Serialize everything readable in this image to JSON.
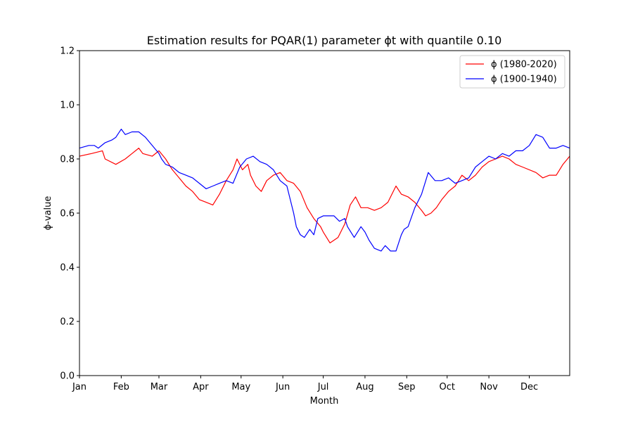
{
  "chart_data": {
    "type": "line",
    "title": "Estimation results for PQAR(1) parameter ϕt with quantile 0.10",
    "xlabel": "Month",
    "ylabel": "ϕ-value",
    "xlim": [
      1,
      365
    ],
    "ylim": [
      0.0,
      1.2
    ],
    "yticks": [
      0.0,
      0.2,
      0.4,
      0.6,
      0.8,
      1.0,
      1.2
    ],
    "ytick_labels": [
      "0.0",
      "0.2",
      "0.4",
      "0.6",
      "0.8",
      "1.0",
      "1.2"
    ],
    "xticks": [
      {
        "day": 1,
        "label": "Jan"
      },
      {
        "day": 32,
        "label": "Feb"
      },
      {
        "day": 60,
        "label": "Mar"
      },
      {
        "day": 91,
        "label": "Apr"
      },
      {
        "day": 121,
        "label": "May"
      },
      {
        "day": 152,
        "label": "Jun"
      },
      {
        "day": 182,
        "label": "Jul"
      },
      {
        "day": 213,
        "label": "Aug"
      },
      {
        "day": 244,
        "label": "Sep"
      },
      {
        "day": 274,
        "label": "Oct"
      },
      {
        "day": 305,
        "label": "Nov"
      },
      {
        "day": 335,
        "label": "Dec"
      }
    ],
    "grid": false,
    "legend_position": "top-right",
    "series": [
      {
        "name": "ϕ (1980-2020)",
        "color": "#ff0000",
        "x": [
          1,
          10,
          18,
          20,
          28,
          35,
          40,
          45,
          48,
          55,
          60,
          65,
          70,
          75,
          80,
          85,
          90,
          95,
          100,
          105,
          110,
          115,
          118,
          122,
          126,
          128,
          132,
          136,
          140,
          145,
          150,
          155,
          160,
          165,
          170,
          175,
          180,
          182,
          187,
          190,
          193,
          198,
          202,
          206,
          210,
          215,
          220,
          225,
          230,
          233,
          236,
          240,
          245,
          250,
          255,
          258,
          262,
          266,
          270,
          275,
          280,
          285,
          290,
          295,
          300,
          305,
          310,
          315,
          320,
          325,
          330,
          340,
          345,
          350,
          355,
          360,
          365
        ],
        "y": [
          0.81,
          0.82,
          0.83,
          0.8,
          0.78,
          0.8,
          0.82,
          0.84,
          0.82,
          0.81,
          0.83,
          0.8,
          0.76,
          0.73,
          0.7,
          0.68,
          0.65,
          0.64,
          0.63,
          0.67,
          0.72,
          0.76,
          0.8,
          0.76,
          0.78,
          0.74,
          0.7,
          0.68,
          0.72,
          0.74,
          0.75,
          0.72,
          0.71,
          0.68,
          0.62,
          0.58,
          0.55,
          0.53,
          0.49,
          0.5,
          0.51,
          0.56,
          0.63,
          0.66,
          0.62,
          0.62,
          0.61,
          0.62,
          0.64,
          0.67,
          0.7,
          0.67,
          0.66,
          0.64,
          0.61,
          0.59,
          0.6,
          0.62,
          0.65,
          0.68,
          0.7,
          0.74,
          0.72,
          0.74,
          0.77,
          0.79,
          0.8,
          0.81,
          0.8,
          0.78,
          0.77,
          0.75,
          0.73,
          0.74,
          0.74,
          0.78,
          0.81
        ]
      },
      {
        "name": "ϕ (1900-1940)",
        "color": "#0000ff",
        "x": [
          1,
          8,
          12,
          15,
          20,
          25,
          28,
          32,
          35,
          40,
          45,
          50,
          55,
          60,
          62,
          65,
          70,
          75,
          80,
          85,
          90,
          95,
          100,
          105,
          110,
          115,
          120,
          125,
          130,
          135,
          140,
          145,
          150,
          155,
          160,
          162,
          165,
          168,
          172,
          175,
          178,
          182,
          186,
          190,
          194,
          198,
          200,
          205,
          210,
          213,
          216,
          220,
          225,
          228,
          232,
          236,
          240,
          242,
          245,
          250,
          255,
          260,
          265,
          270,
          275,
          280,
          285,
          290,
          295,
          300,
          305,
          310,
          315,
          320,
          325,
          330,
          335,
          340,
          345,
          350,
          355,
          360,
          365
        ],
        "y": [
          0.84,
          0.85,
          0.85,
          0.84,
          0.86,
          0.87,
          0.88,
          0.91,
          0.89,
          0.9,
          0.9,
          0.88,
          0.85,
          0.82,
          0.8,
          0.78,
          0.77,
          0.75,
          0.74,
          0.73,
          0.71,
          0.69,
          0.7,
          0.71,
          0.72,
          0.71,
          0.77,
          0.8,
          0.81,
          0.79,
          0.78,
          0.76,
          0.72,
          0.7,
          0.6,
          0.55,
          0.52,
          0.51,
          0.54,
          0.52,
          0.58,
          0.59,
          0.59,
          0.59,
          0.57,
          0.58,
          0.55,
          0.51,
          0.55,
          0.53,
          0.5,
          0.47,
          0.46,
          0.48,
          0.46,
          0.46,
          0.52,
          0.54,
          0.55,
          0.62,
          0.67,
          0.75,
          0.72,
          0.72,
          0.73,
          0.71,
          0.72,
          0.73,
          0.77,
          0.79,
          0.81,
          0.8,
          0.82,
          0.81,
          0.83,
          0.83,
          0.85,
          0.89,
          0.88,
          0.84,
          0.84,
          0.85,
          0.84
        ]
      }
    ]
  }
}
